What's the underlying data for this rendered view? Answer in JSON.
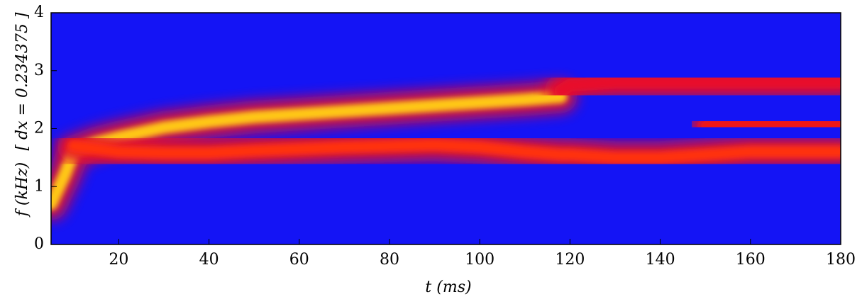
{
  "chart_data": {
    "type": "spectrogram",
    "xlabel": "t (ms)",
    "ylabel": "f (kHz)",
    "ylabel_note": "[ dx = 0.234375 ]",
    "xlim": [
      5,
      180
    ],
    "ylim": [
      0,
      4
    ],
    "xticks": [
      20,
      40,
      60,
      80,
      100,
      120,
      140,
      160,
      180
    ],
    "yticks": [
      0,
      1,
      2,
      3,
      4
    ],
    "background": "#1414f5",
    "x": [
      5,
      8,
      10,
      15,
      20,
      30,
      40,
      50,
      60,
      70,
      80,
      90,
      100,
      110,
      118,
      120,
      130,
      140,
      150,
      160,
      170,
      180
    ],
    "series": [
      {
        "color": "#ffc814",
        "values": [
          0.7,
          1.2,
          1.6,
          1.75,
          1.85,
          2.02,
          2.12,
          2.2,
          2.25,
          2.3,
          2.35,
          2.4,
          2.45,
          2.5,
          2.55,
          null,
          null,
          null,
          null,
          null,
          null,
          null
        ]
      },
      {
        "color": "#ff3010",
        "values": [
          null,
          null,
          1.7,
          1.65,
          1.6,
          1.58,
          1.58,
          1.62,
          1.65,
          1.68,
          1.7,
          1.72,
          1.68,
          1.6,
          1.55,
          1.55,
          1.5,
          1.5,
          1.55,
          1.6,
          1.6,
          1.6
        ]
      },
      {
        "color": "#e8102a",
        "values": [
          null,
          null,
          null,
          null,
          null,
          null,
          null,
          null,
          null,
          null,
          null,
          null,
          null,
          null,
          2.65,
          2.75,
          2.8,
          2.8,
          2.8,
          2.8,
          2.8,
          2.8
        ]
      },
      {
        "color": "#f01818",
        "values": [
          null,
          null,
          null,
          null,
          null,
          null,
          null,
          null,
          null,
          null,
          null,
          null,
          null,
          null,
          null,
          null,
          null,
          null,
          2.05,
          2.1,
          2.1,
          2.05
        ]
      }
    ]
  }
}
